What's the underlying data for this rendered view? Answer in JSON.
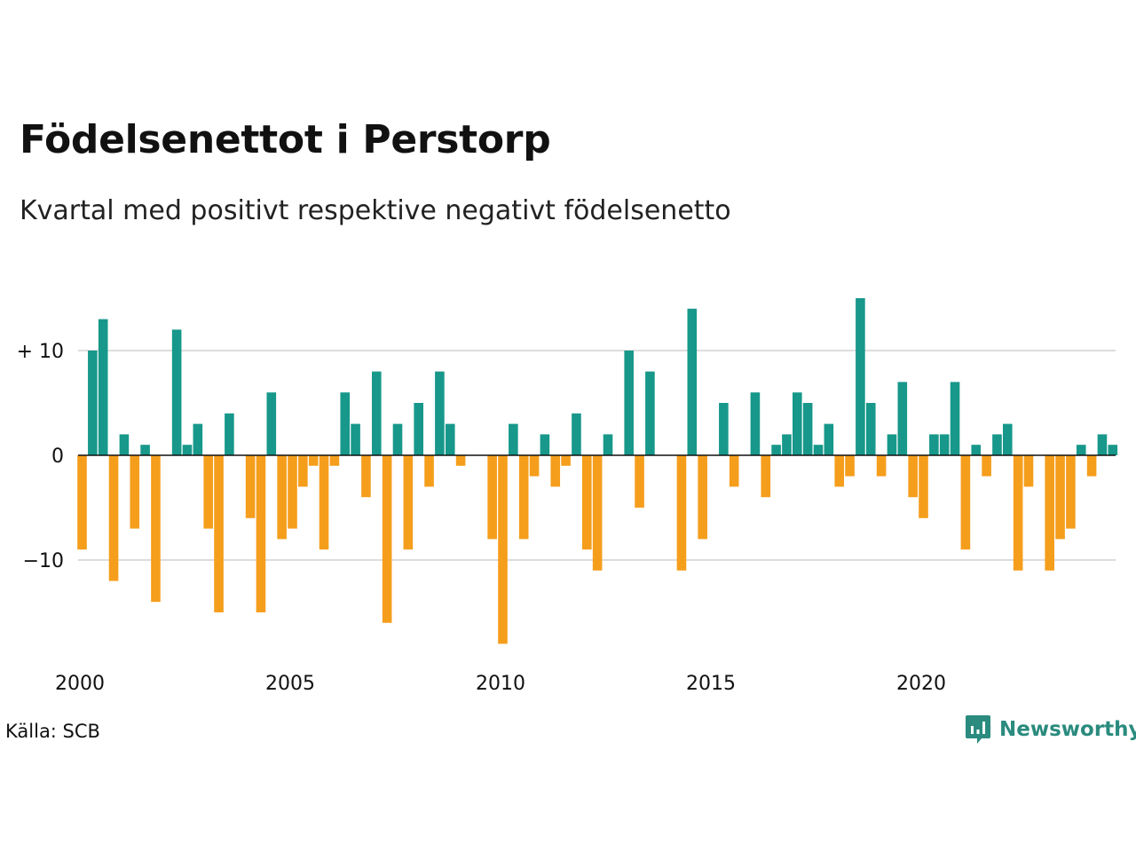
{
  "title": "Födelsenettot i Perstorp",
  "subtitle": "Kvartal med positivt respektive negativt födelsenetto",
  "source": "Källa: SCB",
  "brand": {
    "name": "Newsworthy",
    "icon": "newsworthy-logo-icon"
  },
  "colors": {
    "positive": "#17988a",
    "negative": "#f59e1c",
    "grid": "#dddddd",
    "zero_line": "#111111",
    "brand": "#2a8b7e"
  },
  "chart_data": {
    "type": "bar",
    "xlabel": "",
    "ylabel": "",
    "ylim": [
      -19,
      16
    ],
    "y_ticks": [
      {
        "value": 10,
        "label": "+ 10"
      },
      {
        "value": 0,
        "label": "0"
      },
      {
        "value": -10,
        "label": "−10"
      }
    ],
    "x_ticks": [
      {
        "value": 2000,
        "label": "2000"
      },
      {
        "value": 2005,
        "label": "2005"
      },
      {
        "value": 2010,
        "label": "2010"
      },
      {
        "value": 2015,
        "label": "2015"
      },
      {
        "value": 2020,
        "label": "2020"
      }
    ],
    "start": {
      "year": 2000,
      "quarter": 1
    },
    "grid": true,
    "values": [
      -9,
      10,
      13,
      -12,
      2,
      -7,
      1,
      -14,
      0,
      12,
      1,
      3,
      -7,
      -15,
      4,
      0,
      -6,
      -15,
      6,
      -8,
      -7,
      -3,
      -1,
      -9,
      -1,
      6,
      3,
      -4,
      8,
      -16,
      3,
      -9,
      5,
      -3,
      8,
      3,
      -1,
      0,
      0,
      -8,
      -18,
      3,
      -8,
      -2,
      2,
      -3,
      -1,
      4,
      -9,
      -11,
      2,
      0,
      10,
      -5,
      8,
      0,
      0,
      -11,
      14,
      -8,
      0,
      5,
      -3,
      0,
      6,
      -4,
      1,
      2,
      6,
      5,
      1,
      3,
      -3,
      -2,
      15,
      5,
      -2,
      2,
      7,
      -4,
      -6,
      2,
      2,
      7,
      -9,
      1,
      -2,
      2,
      3,
      -11,
      -3,
      0,
      -11,
      -8,
      -7,
      1,
      -2,
      2,
      1
    ]
  }
}
